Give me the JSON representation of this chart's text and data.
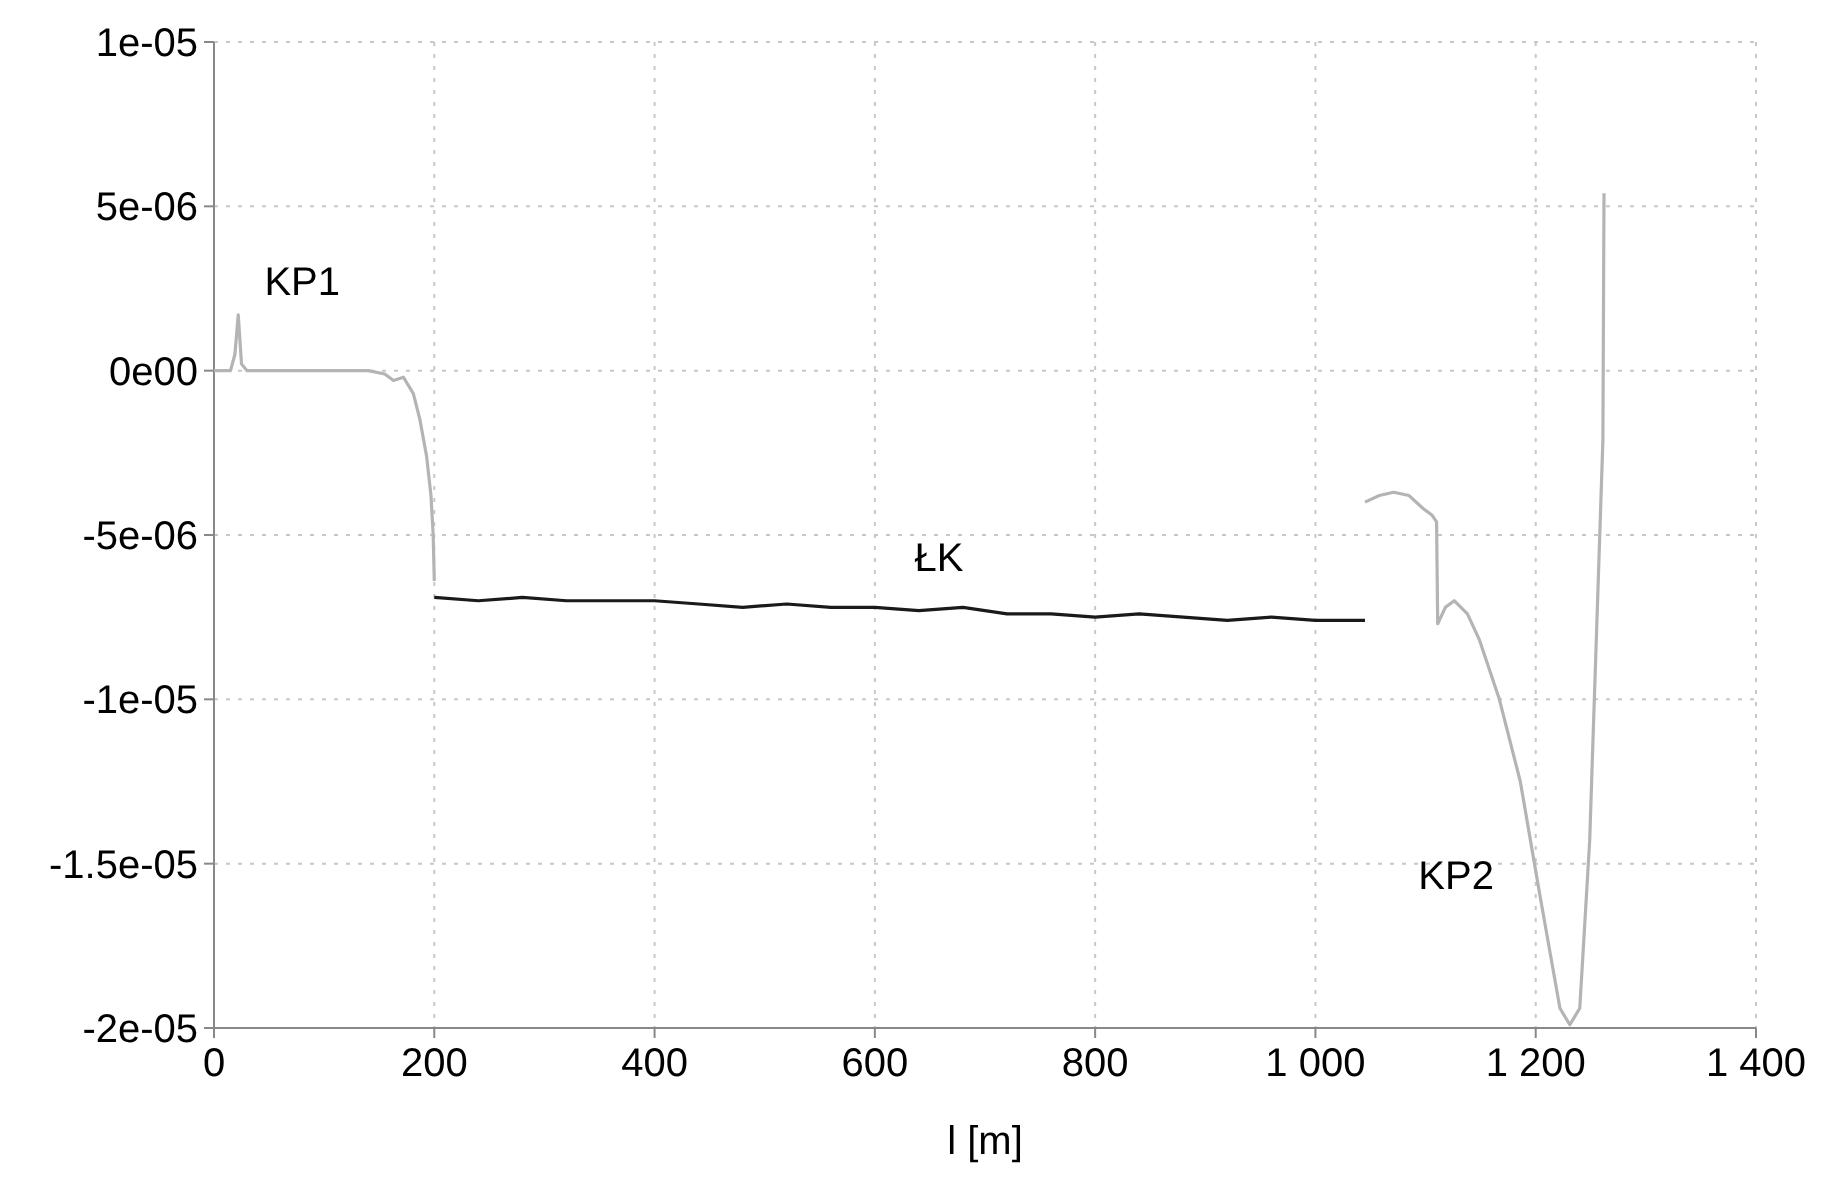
{
  "chart_data": {
    "type": "line",
    "xlabel": "l [m]",
    "xlim": [
      0,
      1400
    ],
    "xticks": [
      0,
      200,
      400,
      600,
      800,
      {
        "value": 1000,
        "label": "1 000"
      },
      {
        "value": 1200,
        "label": "1 200"
      },
      {
        "value": 1400,
        "label": "1 400"
      }
    ],
    "ylim": [
      -2e-05,
      1e-05
    ],
    "yticks": [
      {
        "value": 1e-05,
        "label": "1e-05"
      },
      {
        "value": 5e-06,
        "label": "5e-06"
      },
      {
        "value": 0,
        "label": "0e00"
      },
      {
        "value": -5e-06,
        "label": "-5e-06"
      },
      {
        "value": -1e-05,
        "label": "-1e-05"
      },
      {
        "value": -1.5e-05,
        "label": "-1.5e-05"
      },
      {
        "value": -2e-05,
        "label": "-2e-05"
      }
    ],
    "grid": true,
    "line_style": "solid",
    "marker": "none",
    "series": [
      {
        "name": "KP1",
        "color": "#b4b4b4",
        "x": [
          0,
          15,
          19,
          22,
          25,
          30,
          60,
          100,
          140,
          155,
          163,
          172,
          181,
          187,
          193,
          197,
          199,
          200
        ],
        "values": [
          0,
          0,
          5e-07,
          1.7e-06,
          2e-07,
          0,
          0,
          0,
          0,
          -1e-07,
          -3e-07,
          -2e-07,
          -7e-07,
          -1.5e-06,
          -2.6e-06,
          -3.8e-06,
          -5e-06,
          -6.4e-06
        ]
      },
      {
        "name": "ŁK",
        "color": "#1a1a1a",
        "x": [
          200,
          240,
          280,
          320,
          360,
          400,
          440,
          480,
          520,
          560,
          600,
          640,
          680,
          720,
          760,
          800,
          840,
          880,
          920,
          960,
          1000,
          1045
        ],
        "values": [
          -6.9e-06,
          -7e-06,
          -6.9e-06,
          -7e-06,
          -7e-06,
          -7e-06,
          -7.1e-06,
          -7.2e-06,
          -7.1e-06,
          -7.2e-06,
          -7.2e-06,
          -7.3e-06,
          -7.2e-06,
          -7.4e-06,
          -7.4e-06,
          -7.5e-06,
          -7.4e-06,
          -7.5e-06,
          -7.6e-06,
          -7.5e-06,
          -7.6e-06,
          -7.6e-06
        ]
      },
      {
        "name": "KP2",
        "color": "#b4b4b4",
        "x": [
          1045,
          1058,
          1071,
          1085,
          1098,
          1106,
          1110,
          1111,
          1118,
          1126,
          1138,
          1149,
          1167,
          1186,
          1204,
          1222,
          1231,
          1240,
          1249,
          1255,
          1261,
          1262
        ],
        "values": [
          -4e-06,
          -3.8e-06,
          -3.7e-06,
          -3.8e-06,
          -4.2e-06,
          -4.4e-06,
          -4.6e-06,
          -7.7e-06,
          -7.2e-06,
          -7e-06,
          -7.4e-06,
          -8.2e-06,
          -1e-05,
          -1.25e-05,
          -1.6e-05,
          -1.94e-05,
          -1.99e-05,
          -1.94e-05,
          -1.43e-05,
          -8.2e-06,
          -2.1e-06,
          5.4e-06
        ]
      }
    ]
  }
}
